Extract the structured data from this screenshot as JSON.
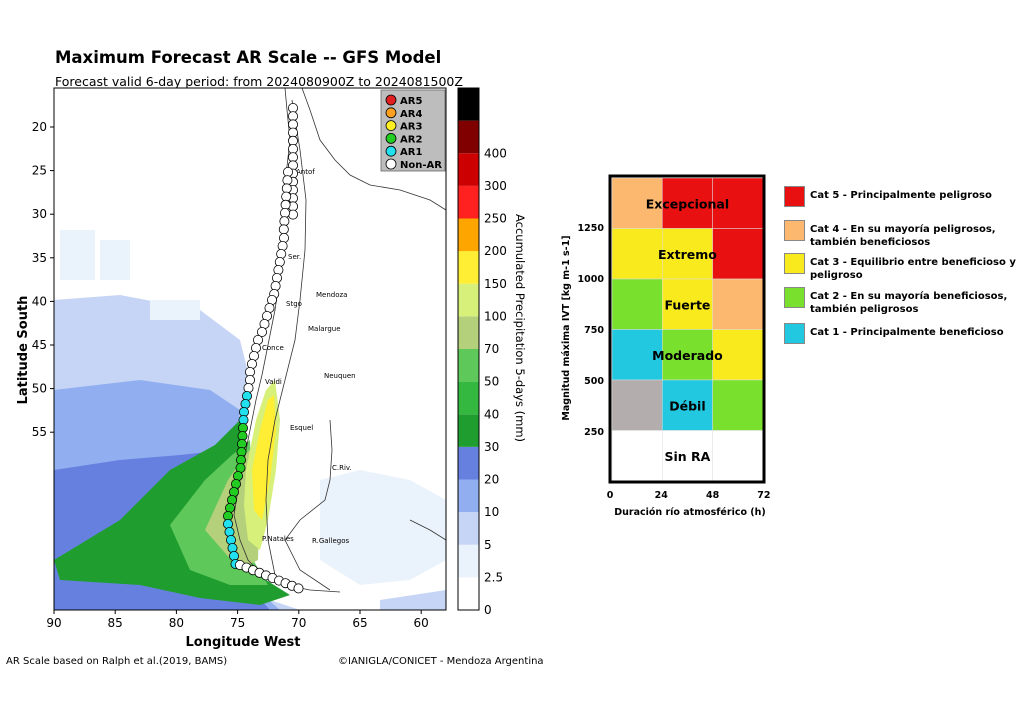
{
  "header": {
    "title": "Maximum Forecast AR Scale -- GFS Model",
    "subtitle": "Forecast valid 6-day period: from 2024080900Z to 2024081500Z"
  },
  "map": {
    "lon_ticks": [
      "90",
      "85",
      "80",
      "75",
      "70",
      "65",
      "60"
    ],
    "lat_ticks": [
      "20",
      "25",
      "30",
      "35",
      "40",
      "45",
      "50",
      "55"
    ],
    "xlabel": "Longitude West",
    "ylabel": "Latitude South",
    "cities": [
      "Antof",
      "Ser.",
      "Stgo",
      "Mendoza",
      "Malargue",
      "Conce",
      "Neuquen",
      "Valdi",
      "Esquel",
      "C.Riv.",
      "P.Natales",
      "R.Gallegos"
    ],
    "land_color": "#ffffff",
    "ocean_color": "#ffffff"
  },
  "colorbar": {
    "label": "Accumulated Precipitation 5-days (mm)",
    "ticks": [
      "0",
      "2.5",
      "5",
      "10",
      "20",
      "30",
      "40",
      "50",
      "70",
      "100",
      "150",
      "200",
      "250",
      "300",
      "400"
    ],
    "colors": [
      "#ffffff",
      "#eaf2fb",
      "#c6d5f5",
      "#90aef0",
      "#6680e0",
      "#1f9e2f",
      "#35b83f",
      "#5ec85a",
      "#b5d07a",
      "#d6f07a",
      "#ffee33",
      "#ffa500",
      "#ff2020",
      "#cc0000",
      "#800000",
      "#000000"
    ]
  },
  "ar_legend": [
    {
      "label": "AR5",
      "color": "#e02020"
    },
    {
      "label": "AR4",
      "color": "#ffa020"
    },
    {
      "label": "AR3",
      "color": "#ffee22"
    },
    {
      "label": "AR2",
      "color": "#22cc22"
    },
    {
      "label": "AR1",
      "color": "#22e0ee"
    },
    {
      "label": "Non-AR",
      "color": "#ffffff"
    }
  ],
  "footer": {
    "left": "AR Scale based on Ralph et al.(2019, BAMS)",
    "right": "©IANIGLA/CONICET - Mendoza Argentina"
  },
  "scale_chart": {
    "ylabel": "Magnitud máxima IVT  [kg m-1 s-1]",
    "xlabel": "Duración río atmosférico (h)",
    "x_ticks": [
      "0",
      "24",
      "48",
      "72"
    ],
    "y_ticks": [
      "250",
      "500",
      "750",
      "1000",
      "1250"
    ],
    "rows": [
      "Excepcional",
      "Extremo",
      "Fuerte",
      "Moderado",
      "Débil",
      "Sin RA"
    ],
    "grid_colors": [
      [
        "#fbb86e",
        "#e81010",
        "#e81010"
      ],
      [
        "#f8ea1c",
        "#f8ea1c",
        "#e81010"
      ],
      [
        "#7ae02e",
        "#f8ea1c",
        "#fbb86e"
      ],
      [
        "#22c8e0",
        "#7ae02e",
        "#f8ea1c"
      ],
      [
        "#b3adad",
        "#22c8e0",
        "#7ae02e"
      ],
      [
        "#ffffff",
        "#ffffff",
        "#ffffff"
      ]
    ]
  },
  "categories": [
    {
      "label": "Cat 5 - Principalmente peligroso",
      "color": "#e81010"
    },
    {
      "label": "Cat 4 - En su mayoría peligrosos, también beneficiosos",
      "color": "#fbb86e"
    },
    {
      "label": "Cat 3 - Equilibrio entre beneficioso y peligroso",
      "color": "#f8ea1c"
    },
    {
      "label": "Cat 2 - En su mayoría beneficiosos, también peligrosos",
      "color": "#7ae02e"
    },
    {
      "label": "Cat 1 - Principalmente beneficioso",
      "color": "#22c8e0"
    }
  ]
}
